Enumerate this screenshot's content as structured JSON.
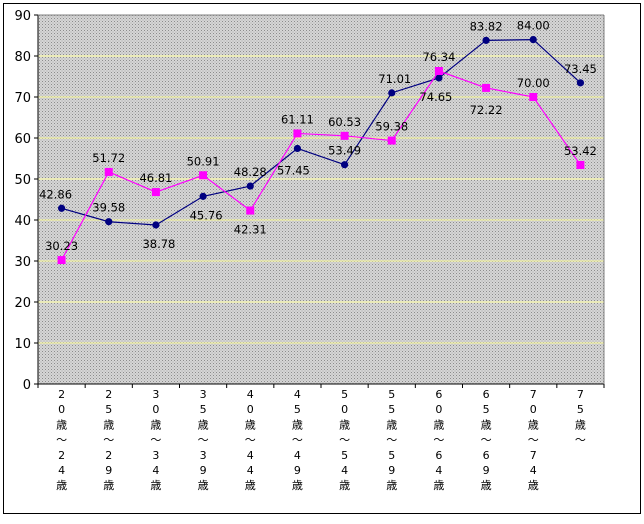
{
  "chart_data": {
    "type": "line",
    "title": "",
    "xlabel": "",
    "ylabel": "",
    "ylim": [
      0,
      90
    ],
    "yticks": [
      0,
      10,
      20,
      30,
      40,
      50,
      60,
      70,
      80,
      90
    ],
    "grid": true,
    "legend": "none",
    "categories": [
      "20歳～24歳",
      "25歳～29歳",
      "30歳～34歳",
      "35歳～39歳",
      "40歳～44歳",
      "45歳～49歳",
      "50歳～54歳",
      "55歳～59歳",
      "60歳～64歳",
      "65歳～69歳",
      "70歳～74歳",
      "75歳～"
    ],
    "series": [
      {
        "color": "#000080",
        "marker": "circle",
        "values": [
          42.86,
          39.58,
          38.78,
          45.76,
          48.28,
          57.45,
          53.49,
          71.01,
          74.65,
          83.82,
          84.0,
          73.45
        ],
        "labels": [
          "42.86",
          "39.58",
          "38.78",
          "45.76",
          "48.28",
          "57.45",
          "53.49",
          "71.01",
          "74.65",
          "83.82",
          "84.00",
          "73.45"
        ]
      },
      {
        "color": "#ff00ff",
        "marker": "square",
        "values": [
          30.23,
          51.72,
          46.81,
          50.91,
          42.31,
          61.11,
          60.53,
          59.38,
          76.34,
          72.22,
          70.0,
          53.42
        ],
        "labels": [
          "30.23",
          "51.72",
          "46.81",
          "50.91",
          "42.31",
          "61.11",
          "60.53",
          "59.38",
          "76.34",
          "72.22",
          "70.00",
          "53.42"
        ]
      }
    ]
  }
}
